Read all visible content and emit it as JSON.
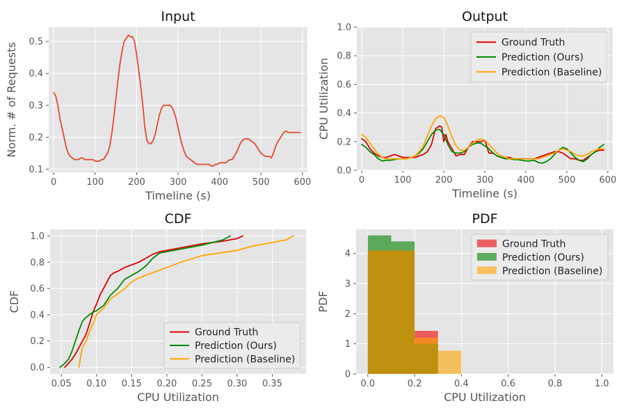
{
  "chart_data": [
    {
      "id": "input",
      "type": "line",
      "title": "Input",
      "xlabel": "Timeline (s)",
      "ylabel": "Norm. # of Requests",
      "xlim": [
        -12,
        612
      ],
      "ylim": [
        0.09,
        0.545
      ],
      "xticks": [
        0,
        100,
        200,
        300,
        400,
        500,
        600
      ],
      "yticks": [
        0.1,
        0.2,
        0.3,
        0.4,
        0.5
      ],
      "ytick_labels": [
        "0.1",
        "0.2",
        "0.3",
        "0.4",
        "0.5"
      ],
      "grid": true,
      "series": [
        {
          "color": "#e24a33",
          "x": [
            0,
            5,
            10,
            15,
            20,
            25,
            30,
            35,
            40,
            45,
            50,
            55,
            60,
            65,
            70,
            75,
            80,
            85,
            90,
            95,
            100,
            105,
            110,
            115,
            120,
            125,
            130,
            135,
            140,
            145,
            150,
            155,
            160,
            165,
            170,
            175,
            180,
            185,
            190,
            195,
            200,
            205,
            210,
            215,
            220,
            225,
            230,
            235,
            240,
            245,
            250,
            255,
            260,
            265,
            270,
            275,
            280,
            285,
            290,
            295,
            300,
            305,
            310,
            315,
            320,
            325,
            330,
            335,
            340,
            345,
            350,
            355,
            360,
            365,
            370,
            375,
            380,
            385,
            390,
            395,
            400,
            405,
            410,
            415,
            420,
            425,
            430,
            435,
            440,
            445,
            450,
            455,
            460,
            465,
            470,
            475,
            480,
            485,
            490,
            495,
            500,
            505,
            510,
            515,
            520,
            525,
            530,
            535,
            540,
            545,
            550,
            555,
            560,
            565,
            570,
            575,
            580,
            585,
            590,
            595
          ],
          "y": [
            0.34,
            0.33,
            0.3,
            0.26,
            0.23,
            0.2,
            0.17,
            0.15,
            0.14,
            0.135,
            0.13,
            0.13,
            0.13,
            0.135,
            0.135,
            0.13,
            0.13,
            0.13,
            0.13,
            0.13,
            0.125,
            0.125,
            0.125,
            0.13,
            0.13,
            0.14,
            0.15,
            0.17,
            0.21,
            0.26,
            0.32,
            0.38,
            0.43,
            0.47,
            0.5,
            0.51,
            0.52,
            0.515,
            0.515,
            0.5,
            0.46,
            0.41,
            0.36,
            0.3,
            0.23,
            0.19,
            0.18,
            0.18,
            0.19,
            0.21,
            0.24,
            0.27,
            0.29,
            0.3,
            0.3,
            0.3,
            0.3,
            0.295,
            0.28,
            0.26,
            0.23,
            0.2,
            0.175,
            0.155,
            0.14,
            0.135,
            0.13,
            0.125,
            0.12,
            0.115,
            0.115,
            0.115,
            0.115,
            0.115,
            0.115,
            0.115,
            0.11,
            0.11,
            0.115,
            0.115,
            0.12,
            0.12,
            0.12,
            0.12,
            0.125,
            0.13,
            0.13,
            0.14,
            0.15,
            0.165,
            0.18,
            0.19,
            0.195,
            0.195,
            0.195,
            0.19,
            0.185,
            0.18,
            0.17,
            0.16,
            0.15,
            0.145,
            0.14,
            0.14,
            0.14,
            0.135,
            0.15,
            0.17,
            0.185,
            0.195,
            0.205,
            0.215,
            0.22,
            0.215,
            0.215,
            0.215,
            0.215,
            0.215,
            0.215,
            0.215
          ]
        }
      ]
    },
    {
      "id": "output",
      "type": "line",
      "title": "Output",
      "xlabel": "Timeline (s)",
      "ylabel": "CPU Utilization",
      "xlim": [
        -12,
        612
      ],
      "ylim": [
        0,
        1
      ],
      "xticks": [
        0,
        100,
        200,
        300,
        400,
        500,
        600
      ],
      "yticks": [
        0,
        0.2,
        0.4,
        0.6,
        0.8,
        1.0
      ],
      "ytick_labels": [
        "0.0",
        "0.2",
        "0.4",
        "0.6",
        "0.8",
        "1.0"
      ],
      "grid": true,
      "legend_position": "top-right",
      "series": [
        {
          "name": "Ground Truth",
          "color": "#dd0000",
          "x": [
            0,
            10,
            20,
            30,
            40,
            50,
            60,
            70,
            80,
            90,
            100,
            110,
            120,
            130,
            140,
            150,
            160,
            170,
            180,
            190,
            195,
            200,
            205,
            210,
            220,
            230,
            240,
            250,
            260,
            270,
            280,
            290,
            300,
            310,
            320,
            330,
            340,
            350,
            360,
            370,
            380,
            390,
            400,
            410,
            420,
            430,
            440,
            450,
            460,
            470,
            480,
            490,
            500,
            510,
            520,
            530,
            540,
            550,
            560,
            570,
            580,
            590
          ],
          "y": [
            0.22,
            0.2,
            0.15,
            0.12,
            0.1,
            0.09,
            0.09,
            0.1,
            0.11,
            0.1,
            0.09,
            0.09,
            0.09,
            0.09,
            0.1,
            0.11,
            0.13,
            0.18,
            0.29,
            0.31,
            0.3,
            0.2,
            0.25,
            0.2,
            0.15,
            0.1,
            0.11,
            0.11,
            0.16,
            0.2,
            0.2,
            0.2,
            0.21,
            0.12,
            0.12,
            0.1,
            0.09,
            0.09,
            0.09,
            0.08,
            0.08,
            0.08,
            0.08,
            0.08,
            0.08,
            0.09,
            0.1,
            0.11,
            0.12,
            0.13,
            0.13,
            0.12,
            0.1,
            0.08,
            0.08,
            0.07,
            0.07,
            0.09,
            0.11,
            0.13,
            0.14,
            0.14
          ]
        },
        {
          "name": "Prediction (Ours)",
          "color": "#008800",
          "x": [
            0,
            10,
            20,
            30,
            40,
            50,
            60,
            70,
            80,
            90,
            100,
            110,
            120,
            130,
            140,
            150,
            160,
            170,
            180,
            190,
            200,
            210,
            220,
            230,
            240,
            250,
            260,
            270,
            280,
            290,
            300,
            310,
            320,
            330,
            340,
            350,
            360,
            370,
            380,
            390,
            400,
            410,
            420,
            430,
            440,
            450,
            460,
            470,
            480,
            490,
            500,
            510,
            520,
            530,
            540,
            550,
            560,
            570,
            580,
            590
          ],
          "y": [
            0.18,
            0.16,
            0.13,
            0.11,
            0.08,
            0.065,
            0.07,
            0.07,
            0.075,
            0.08,
            0.08,
            0.08,
            0.09,
            0.1,
            0.12,
            0.15,
            0.2,
            0.25,
            0.28,
            0.285,
            0.25,
            0.18,
            0.13,
            0.12,
            0.12,
            0.13,
            0.16,
            0.18,
            0.19,
            0.19,
            0.17,
            0.15,
            0.12,
            0.1,
            0.09,
            0.08,
            0.08,
            0.075,
            0.075,
            0.07,
            0.065,
            0.065,
            0.07,
            0.055,
            0.05,
            0.06,
            0.08,
            0.11,
            0.14,
            0.16,
            0.15,
            0.12,
            0.09,
            0.07,
            0.06,
            0.08,
            0.11,
            0.13,
            0.16,
            0.18
          ]
        },
        {
          "name": "Prediction (Baseline)",
          "color": "#ffa500",
          "x": [
            0,
            10,
            20,
            30,
            40,
            50,
            60,
            70,
            80,
            90,
            100,
            110,
            120,
            130,
            140,
            150,
            160,
            170,
            180,
            190,
            200,
            210,
            220,
            230,
            240,
            250,
            260,
            270,
            280,
            290,
            300,
            310,
            320,
            330,
            340,
            350,
            360,
            370,
            380,
            390,
            400,
            410,
            420,
            430,
            440,
            450,
            460,
            470,
            480,
            490,
            500,
            510,
            520,
            530,
            540,
            550,
            560,
            570,
            580,
            590
          ],
          "y": [
            0.25,
            0.23,
            0.19,
            0.15,
            0.11,
            0.09,
            0.08,
            0.08,
            0.08,
            0.08,
            0.08,
            0.08,
            0.09,
            0.1,
            0.13,
            0.17,
            0.24,
            0.31,
            0.36,
            0.38,
            0.37,
            0.31,
            0.23,
            0.17,
            0.14,
            0.14,
            0.16,
            0.19,
            0.21,
            0.22,
            0.21,
            0.18,
            0.15,
            0.12,
            0.1,
            0.09,
            0.08,
            0.08,
            0.08,
            0.08,
            0.08,
            0.08,
            0.08,
            0.08,
            0.09,
            0.1,
            0.11,
            0.12,
            0.14,
            0.15,
            0.14,
            0.13,
            0.11,
            0.1,
            0.1,
            0.11,
            0.13,
            0.14,
            0.15,
            0.15
          ]
        }
      ]
    },
    {
      "id": "cdf",
      "type": "line",
      "title": "CDF",
      "xlabel": "CPU Utilization",
      "ylabel": "CDF",
      "xlim": [
        0.034,
        0.398
      ],
      "ylim": [
        -0.05,
        1.05
      ],
      "xticks": [
        0.05,
        0.1,
        0.15,
        0.2,
        0.25,
        0.3,
        0.35
      ],
      "xtick_labels": [
        "0.05",
        "0.10",
        "0.15",
        "0.20",
        "0.25",
        "0.30",
        "0.35"
      ],
      "yticks": [
        0,
        0.2,
        0.4,
        0.6,
        0.8,
        1.0
      ],
      "ytick_labels": [
        "0.0",
        "0.2",
        "0.4",
        "0.6",
        "0.8",
        "1.0"
      ],
      "grid": true,
      "legend_position": "lower-right",
      "series": [
        {
          "name": "Ground Truth",
          "color": "#dd0000",
          "x": [
            0.055,
            0.06,
            0.065,
            0.07,
            0.075,
            0.08,
            0.085,
            0.09,
            0.095,
            0.1,
            0.105,
            0.11,
            0.115,
            0.12,
            0.125,
            0.13,
            0.14,
            0.15,
            0.16,
            0.17,
            0.18,
            0.19,
            0.2,
            0.22,
            0.25,
            0.28,
            0.3,
            0.308
          ],
          "y": [
            0.0,
            0.03,
            0.06,
            0.1,
            0.15,
            0.2,
            0.25,
            0.33,
            0.42,
            0.48,
            0.55,
            0.6,
            0.65,
            0.7,
            0.72,
            0.73,
            0.76,
            0.78,
            0.8,
            0.83,
            0.86,
            0.88,
            0.89,
            0.91,
            0.94,
            0.96,
            0.98,
            1.0
          ]
        },
        {
          "name": "Prediction (Ours)",
          "color": "#008800",
          "x": [
            0.048,
            0.055,
            0.06,
            0.065,
            0.07,
            0.075,
            0.08,
            0.085,
            0.09,
            0.095,
            0.1,
            0.11,
            0.12,
            0.13,
            0.14,
            0.15,
            0.16,
            0.17,
            0.18,
            0.19,
            0.2,
            0.22,
            0.25,
            0.28,
            0.29
          ],
          "y": [
            0.0,
            0.03,
            0.06,
            0.12,
            0.2,
            0.28,
            0.35,
            0.38,
            0.4,
            0.42,
            0.43,
            0.47,
            0.55,
            0.6,
            0.67,
            0.7,
            0.73,
            0.77,
            0.83,
            0.87,
            0.88,
            0.9,
            0.93,
            0.97,
            1.0
          ]
        },
        {
          "name": "Prediction (Baseline)",
          "color": "#ffa500",
          "x": [
            0.075,
            0.078,
            0.08,
            0.085,
            0.09,
            0.095,
            0.1,
            0.11,
            0.12,
            0.13,
            0.14,
            0.15,
            0.16,
            0.17,
            0.18,
            0.19,
            0.2,
            0.21,
            0.22,
            0.25,
            0.3,
            0.32,
            0.35,
            0.37,
            0.38
          ],
          "y": [
            0.0,
            0.1,
            0.15,
            0.2,
            0.27,
            0.33,
            0.4,
            0.45,
            0.52,
            0.56,
            0.6,
            0.65,
            0.68,
            0.7,
            0.72,
            0.74,
            0.76,
            0.78,
            0.8,
            0.85,
            0.89,
            0.92,
            0.95,
            0.97,
            1.0
          ]
        }
      ]
    },
    {
      "id": "pdf",
      "type": "bar",
      "title": "PDF",
      "xlabel": "CPU Utilization",
      "ylabel": "PDF",
      "xlim": [
        -0.05,
        1.05
      ],
      "ylim": [
        0,
        4.8
      ],
      "xticks": [
        0,
        0.2,
        0.4,
        0.6,
        0.8,
        1.0
      ],
      "xtick_labels": [
        "0.0",
        "0.2",
        "0.4",
        "0.6",
        "0.8",
        "1.0"
      ],
      "yticks": [
        0,
        1,
        2,
        3,
        4
      ],
      "ytick_labels": [
        "0",
        "1",
        "2",
        "3",
        "4"
      ],
      "grid": true,
      "legend_position": "top-right",
      "bin_edges": [
        0,
        0.1,
        0.2,
        0.3,
        0.4
      ],
      "series": [
        {
          "name": "Ground Truth",
          "color": "#ee0000",
          "opacity": 0.6,
          "values": [
            4.1,
            4.1,
            1.43,
            0
          ]
        },
        {
          "name": "Prediction (Ours)",
          "color": "#008000",
          "opacity": 0.6,
          "values": [
            4.6,
            4.4,
            1.0,
            0
          ]
        },
        {
          "name": "Prediction (Baseline)",
          "color": "#ffa500",
          "opacity": 0.6,
          "values": [
            4.1,
            4.1,
            1.2,
            0.77
          ]
        }
      ]
    }
  ]
}
